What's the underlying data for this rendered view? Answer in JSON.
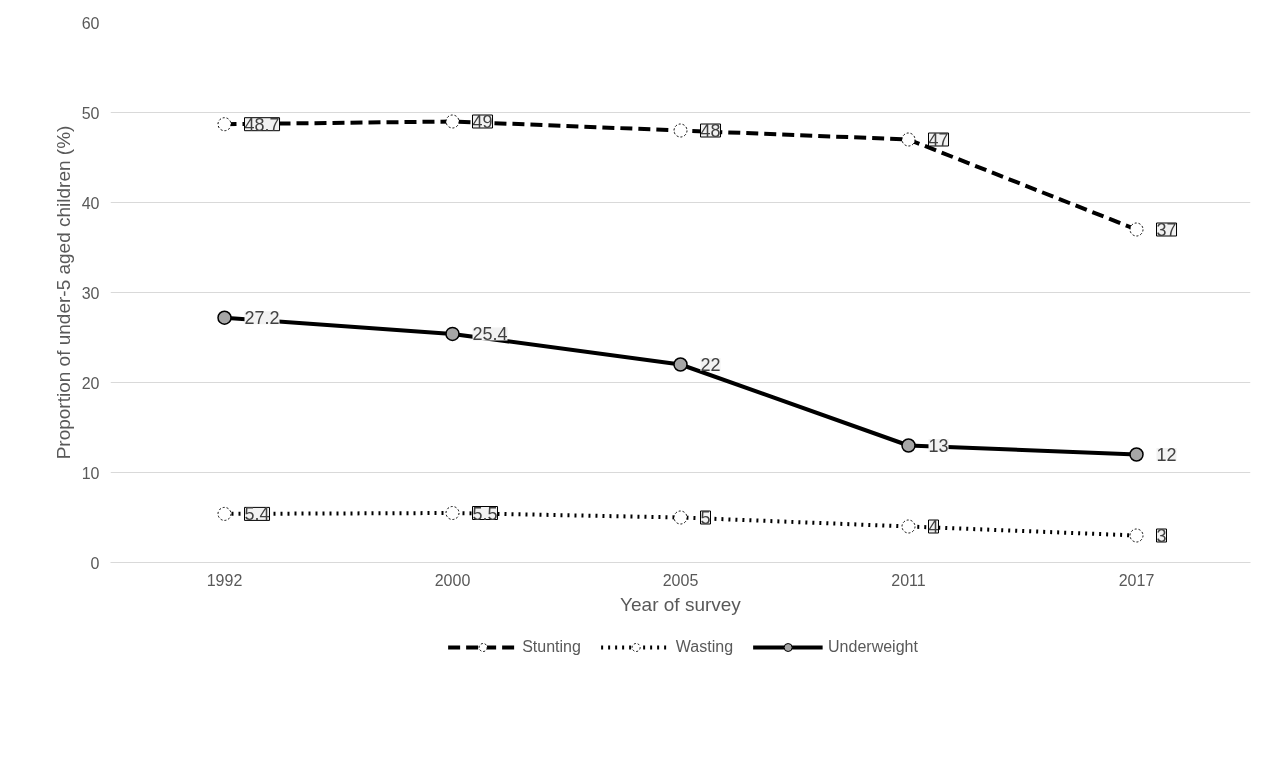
{
  "chart_data": {
    "type": "line",
    "xlabel": "Year of survey",
    "ylabel": "Proportion of under-5 aged children (%)",
    "categories": [
      "1992",
      "2000",
      "2005",
      "2011",
      "2017"
    ],
    "series": [
      {
        "name": "Stunting",
        "color": "#000000",
        "line_style": "dashed",
        "values": [
          48.7,
          49,
          48,
          47,
          37
        ]
      },
      {
        "name": "Wasting",
        "color": "#000000",
        "line_style": "dotted",
        "values": [
          5.4,
          5.5,
          5,
          4,
          3
        ]
      },
      {
        "name": "Underweight",
        "color": "#000000",
        "line_style": "solid",
        "values": [
          27.2,
          25.4,
          22,
          13,
          12
        ]
      }
    ],
    "ylim": [
      0,
      60
    ],
    "yticks": [
      0,
      10,
      20,
      30,
      40,
      50,
      60
    ],
    "grid": "y",
    "legend": "bottom",
    "marker": "circle",
    "data_labels": true
  }
}
